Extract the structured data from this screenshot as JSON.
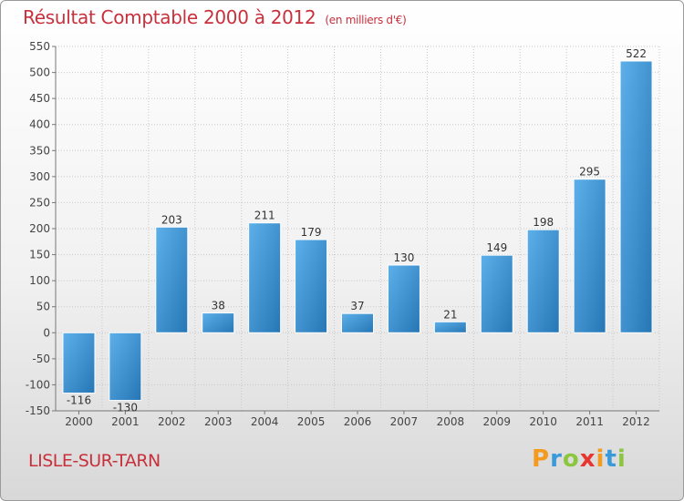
{
  "header": {
    "title": "Résultat Comptable 2000 à 2012",
    "subtitle": "(en milliers d'€)"
  },
  "footer": {
    "place": "LISLE-SUR-TARN",
    "logo_letters": [
      "P",
      "r",
      "o",
      "x",
      "i",
      "t",
      "i"
    ],
    "logo_colors": [
      "#f39a1f",
      "#3a9ad9",
      "#8cc63f",
      "#e8352f",
      "#f39a1f",
      "#3a9ad9",
      "#8cc63f"
    ]
  },
  "colors": {
    "bar_light": "#5db0ea",
    "bar_dark": "#2676b5",
    "title": "#c8303c",
    "grid": "#c8c8c8"
  },
  "chart_data": {
    "type": "bar",
    "title": "Résultat Comptable 2000 à 2012",
    "subtitle": "(en milliers d'€)",
    "xlabel": "",
    "ylabel": "",
    "categories": [
      "2000",
      "2001",
      "2002",
      "2003",
      "2004",
      "2005",
      "2006",
      "2007",
      "2008",
      "2009",
      "2010",
      "2011",
      "2012"
    ],
    "values": [
      -116,
      -130,
      203,
      38,
      211,
      179,
      37,
      130,
      21,
      149,
      198,
      295,
      522
    ],
    "ylim": [
      -150,
      550
    ],
    "yticks": [
      -150,
      -100,
      -50,
      0,
      50,
      100,
      150,
      200,
      250,
      300,
      350,
      400,
      450,
      500,
      550
    ],
    "grid": true
  }
}
